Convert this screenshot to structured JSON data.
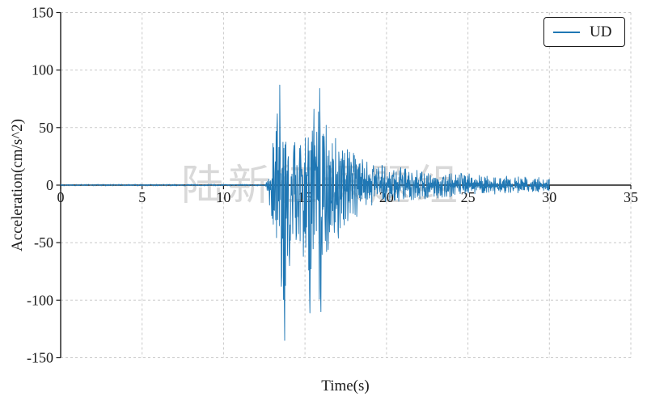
{
  "figure": {
    "background": "#ffffff"
  },
  "chart_data": {
    "type": "line",
    "title": "",
    "xlabel": "Time(s)",
    "ylabel": "Acceleration(cm/s^2)",
    "watermark": "陆新征课题组",
    "xlim": [
      0,
      35
    ],
    "ylim": [
      -150,
      150
    ],
    "xticks": [
      0,
      5,
      10,
      15,
      20,
      25,
      30,
      35
    ],
    "yticks": [
      -150,
      -100,
      -50,
      0,
      50,
      100,
      150
    ],
    "grid": {
      "on": true,
      "style": "dashed",
      "color": "#c9c9c9"
    },
    "axes": {
      "x_spine_position": "zero",
      "spine_color": "#1a1a1a"
    },
    "legend": {
      "position": "upper right",
      "entries": [
        {
          "label": "UD",
          "color": "#1f77b4"
        }
      ]
    },
    "series": [
      {
        "name": "UD",
        "color": "#1f77b4",
        "t_start": 0,
        "t_end": 30,
        "onset_time": 12.6,
        "sample_dt": 0.025,
        "noise_floor": 0.7,
        "seed": 123456789,
        "peak_acceleration": {
          "max": 87,
          "t_max": 13.45,
          "min": -135,
          "t_min": 13.74
        },
        "envelope_positive": [
          [
            12.6,
            2
          ],
          [
            12.75,
            18
          ],
          [
            12.95,
            32
          ],
          [
            13.15,
            48
          ],
          [
            13.3,
            62
          ],
          [
            13.45,
            87
          ],
          [
            13.6,
            58
          ],
          [
            13.8,
            48
          ],
          [
            14.1,
            42
          ],
          [
            14.5,
            46
          ],
          [
            14.9,
            58
          ],
          [
            15.2,
            62
          ],
          [
            15.55,
            66
          ],
          [
            15.9,
            84
          ],
          [
            16.1,
            56
          ],
          [
            16.4,
            48
          ],
          [
            16.8,
            42
          ],
          [
            17.2,
            36
          ],
          [
            17.7,
            31
          ],
          [
            18.2,
            27
          ],
          [
            18.7,
            23
          ],
          [
            19.2,
            21
          ],
          [
            19.7,
            19
          ],
          [
            20.2,
            17
          ],
          [
            21.0,
            15
          ],
          [
            22.0,
            13
          ],
          [
            23.0,
            12
          ],
          [
            24.0,
            11
          ],
          [
            25.0,
            10
          ],
          [
            26.0,
            9
          ],
          [
            27.0,
            8
          ],
          [
            28.0,
            8
          ],
          [
            29.0,
            7
          ],
          [
            30.0,
            6
          ]
        ],
        "envelope_negative": [
          [
            12.6,
            2
          ],
          [
            12.75,
            14
          ],
          [
            12.95,
            28
          ],
          [
            13.15,
            42
          ],
          [
            13.35,
            60
          ],
          [
            13.55,
            88
          ],
          [
            13.74,
            135
          ],
          [
            13.9,
            78
          ],
          [
            14.1,
            66
          ],
          [
            14.4,
            58
          ],
          [
            14.8,
            60
          ],
          [
            15.1,
            68
          ],
          [
            15.3,
            111
          ],
          [
            15.5,
            82
          ],
          [
            15.7,
            90
          ],
          [
            15.95,
            110
          ],
          [
            16.15,
            72
          ],
          [
            16.5,
            54
          ],
          [
            16.9,
            44
          ],
          [
            17.3,
            37
          ],
          [
            17.8,
            31
          ],
          [
            18.3,
            26
          ],
          [
            18.8,
            22
          ],
          [
            19.3,
            19
          ],
          [
            19.8,
            17
          ],
          [
            20.5,
            15
          ],
          [
            21.5,
            13
          ],
          [
            22.5,
            12
          ],
          [
            23.5,
            11
          ],
          [
            24.5,
            10
          ],
          [
            25.5,
            9
          ],
          [
            26.5,
            8
          ],
          [
            27.5,
            7
          ],
          [
            28.5,
            7
          ],
          [
            29.5,
            6
          ],
          [
            30.0,
            5
          ]
        ],
        "key_peaks": [
          [
            13.3,
            62
          ],
          [
            13.45,
            87
          ],
          [
            13.55,
            -88
          ],
          [
            13.74,
            -135
          ],
          [
            14.05,
            -70
          ],
          [
            14.9,
            -62
          ],
          [
            15.3,
            -111
          ],
          [
            15.55,
            66
          ],
          [
            15.9,
            84
          ],
          [
            15.97,
            -110
          ],
          [
            16.3,
            52
          ],
          [
            17.05,
            -46
          ]
        ]
      }
    ]
  }
}
